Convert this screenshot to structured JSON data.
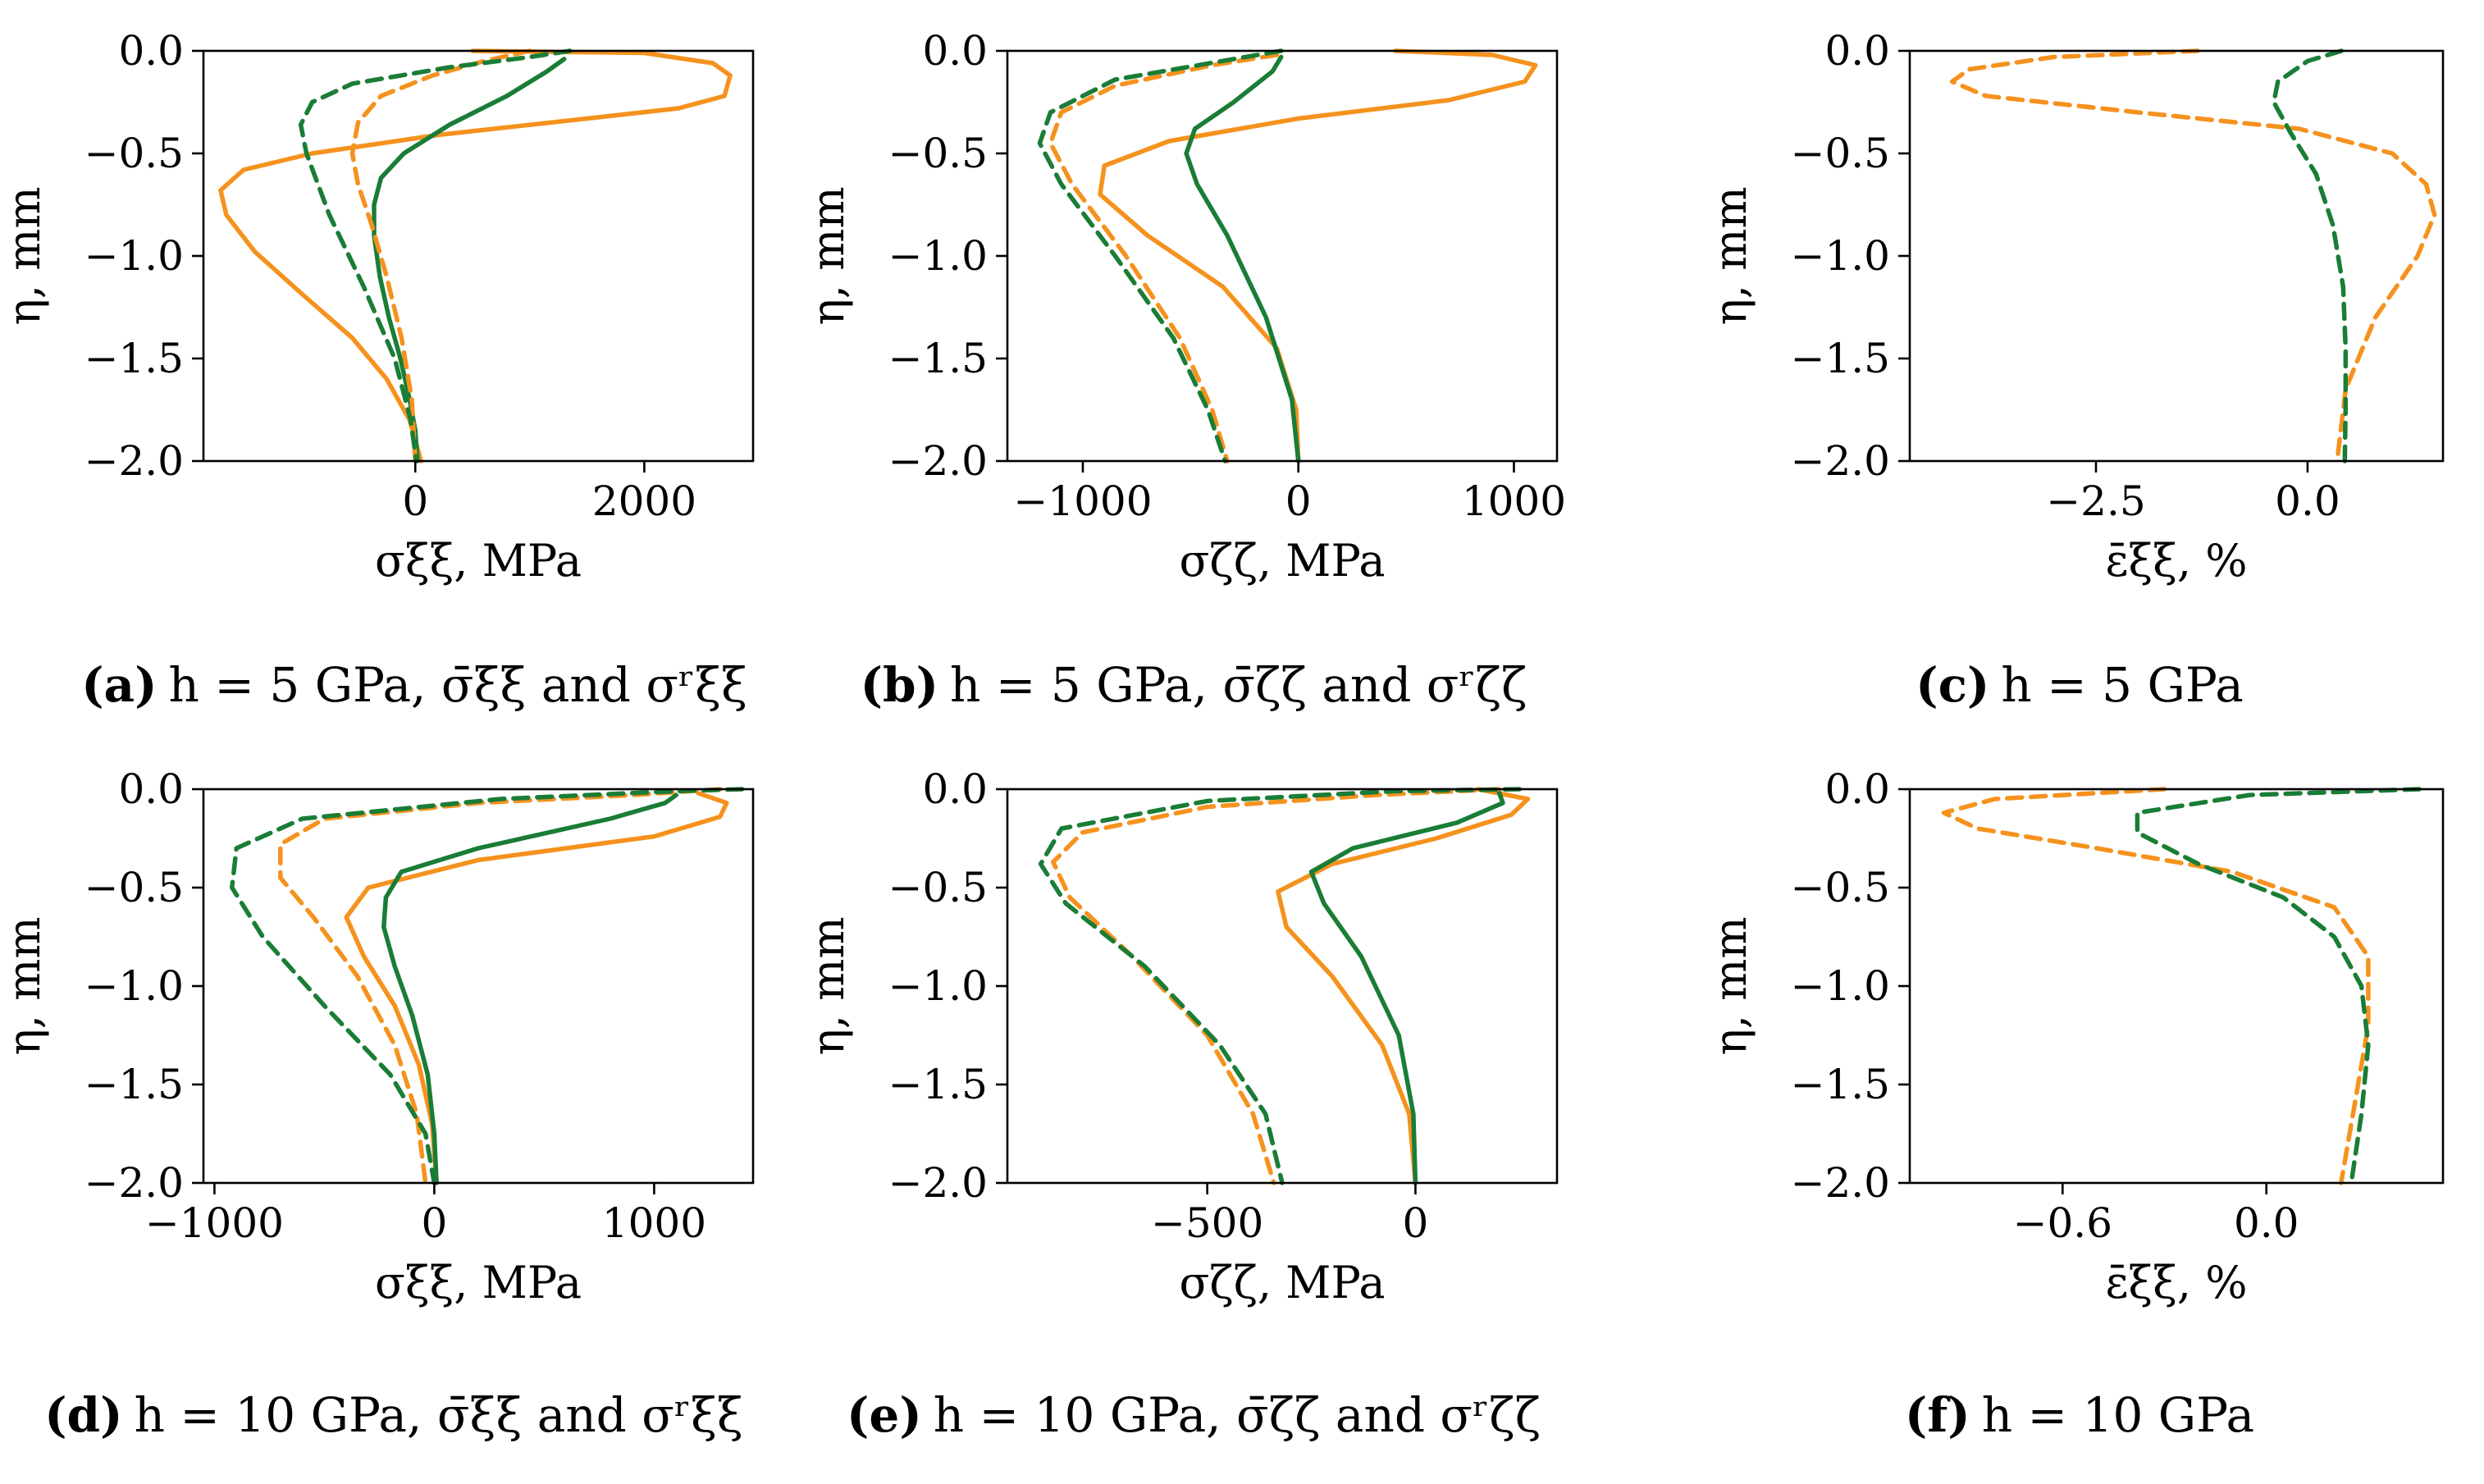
{
  "colors": {
    "orange": "#f5921e",
    "green": "#1a7d36"
  },
  "chart_data": [
    {
      "id": "a",
      "type": "line",
      "caption_letter": "(a)",
      "caption_text": "h = 5 GPa, σ̄ξξ and σʳξξ",
      "xlabel": "σξξ, MPa",
      "ylabel": "η, mm",
      "xlim": [
        -1850,
        2950
      ],
      "ylim": [
        -2.0,
        0.0
      ],
      "xticks": [
        0,
        2000
      ],
      "xtick_labels": [
        "0",
        "2000"
      ],
      "yticks": [
        0.0,
        -0.5,
        -1.0,
        -1.5,
        -2.0
      ],
      "ytick_labels": [
        "0.0",
        "−0.5",
        "−1.0",
        "−1.5",
        "−2.0"
      ],
      "series": [
        {
          "color": "orange",
          "dash": "solid",
          "x": [
            500,
            2000,
            2600,
            2750,
            2700,
            2300,
            1500,
            200,
            -900,
            -1500,
            -1700,
            -1650,
            -1400,
            -1000,
            -550,
            -250,
            -50,
            50
          ],
          "y": [
            0.0,
            -0.01,
            -0.06,
            -0.12,
            -0.22,
            -0.28,
            -0.33,
            -0.41,
            -0.5,
            -0.58,
            -0.68,
            -0.8,
            -0.98,
            -1.18,
            -1.4,
            -1.6,
            -1.8,
            -2.0
          ]
        },
        {
          "color": "green",
          "dash": "solid",
          "x": [
            1300,
            1150,
            800,
            300,
            -100,
            -300,
            -360,
            -360,
            -310,
            -230,
            -130,
            -50,
            0,
            20
          ],
          "y": [
            -0.04,
            -0.1,
            -0.22,
            -0.36,
            -0.5,
            -0.62,
            -0.75,
            -0.9,
            -1.1,
            -1.3,
            -1.5,
            -1.7,
            -1.85,
            -2.0
          ]
        },
        {
          "color": "orange",
          "dash": "dashed",
          "x": [
            1000,
            600,
            150,
            -300,
            -500,
            -550,
            -500,
            -380,
            -250,
            -120,
            -30,
            0
          ],
          "y": [
            0.0,
            -0.05,
            -0.12,
            -0.22,
            -0.35,
            -0.5,
            -0.65,
            -0.85,
            -1.1,
            -1.4,
            -1.7,
            -2.0
          ]
        },
        {
          "color": "green",
          "dash": "dashed",
          "x": [
            1350,
            1000,
            300,
            -550,
            -900,
            -1000,
            -950,
            -750,
            -450,
            -180,
            -40,
            10
          ],
          "y": [
            0.0,
            -0.03,
            -0.08,
            -0.16,
            -0.25,
            -0.36,
            -0.5,
            -0.8,
            -1.15,
            -1.5,
            -1.8,
            -2.0
          ]
        }
      ]
    },
    {
      "id": "b",
      "type": "line",
      "caption_letter": "(b)",
      "caption_text": "h = 5 GPa, σ̄ζζ and σʳζζ",
      "xlabel": "σζζ, MPa",
      "ylabel": "η, mm",
      "xlim": [
        -1350,
        1200
      ],
      "ylim": [
        -2.0,
        0.0
      ],
      "xticks": [
        -1000,
        0,
        1000
      ],
      "xtick_labels": [
        "−1000",
        "0",
        "1000"
      ],
      "yticks": [
        0.0,
        -0.5,
        -1.0,
        -1.5,
        -2.0
      ],
      "ytick_labels": [
        "0.0",
        "−0.5",
        "−1.0",
        "−1.5",
        "−2.0"
      ],
      "series": [
        {
          "color": "orange",
          "dash": "solid",
          "x": [
            450,
            900,
            1100,
            1050,
            700,
            0,
            -600,
            -900,
            -920,
            -700,
            -350,
            -100,
            -10,
            0
          ],
          "y": [
            0.0,
            -0.02,
            -0.07,
            -0.15,
            -0.24,
            -0.33,
            -0.44,
            -0.56,
            -0.7,
            -0.9,
            -1.15,
            -1.45,
            -1.75,
            -2.0
          ]
        },
        {
          "color": "green",
          "dash": "solid",
          "x": [
            -80,
            -120,
            -300,
            -480,
            -520,
            -470,
            -330,
            -150,
            -30,
            0
          ],
          "y": [
            -0.03,
            -0.1,
            -0.25,
            -0.38,
            -0.5,
            -0.65,
            -0.9,
            -1.3,
            -1.7,
            -2.0
          ]
        },
        {
          "color": "orange",
          "dash": "dashed",
          "x": [
            -100,
            -400,
            -850,
            -1100,
            -1150,
            -1050,
            -800,
            -550,
            -400,
            -330
          ],
          "y": [
            -0.02,
            -0.07,
            -0.17,
            -0.3,
            -0.45,
            -0.65,
            -1.0,
            -1.4,
            -1.75,
            -2.0
          ]
        },
        {
          "color": "green",
          "dash": "dashed",
          "x": [
            -80,
            -300,
            -850,
            -1150,
            -1200,
            -1100,
            -850,
            -580,
            -420,
            -340
          ],
          "y": [
            0.0,
            -0.04,
            -0.14,
            -0.3,
            -0.45,
            -0.65,
            -1.0,
            -1.4,
            -1.75,
            -2.0
          ]
        }
      ]
    },
    {
      "id": "c",
      "type": "line",
      "caption_letter": "(c)",
      "caption_text": "h = 5 GPa",
      "xlabel": "ε̄ξξ, %",
      "ylabel": "η, mm",
      "xlim": [
        -4.7,
        1.6
      ],
      "ylim": [
        -2.0,
        0.0
      ],
      "xticks": [
        -2.5,
        0.0
      ],
      "xtick_labels": [
        "−2.5",
        "0.0"
      ],
      "yticks": [
        0.0,
        -0.5,
        -1.0,
        -1.5,
        -2.0
      ],
      "ytick_labels": [
        "0.0",
        "−0.5",
        "−1.0",
        "−1.5",
        "−2.0"
      ],
      "series": [
        {
          "color": "orange",
          "dash": "dashed",
          "x": [
            -1.3,
            -3.0,
            -4.0,
            -4.2,
            -3.8,
            -2.0,
            -0.1,
            1.0,
            1.4,
            1.5,
            1.3,
            0.8,
            0.45,
            0.35
          ],
          "y": [
            0.0,
            -0.03,
            -0.09,
            -0.15,
            -0.22,
            -0.3,
            -0.38,
            -0.5,
            -0.65,
            -0.8,
            -1.0,
            -1.3,
            -1.65,
            -2.0
          ]
        },
        {
          "color": "green",
          "dash": "dashed",
          "x": [
            0.4,
            0.0,
            -0.35,
            -0.4,
            -0.2,
            0.1,
            0.3,
            0.42,
            0.45,
            0.45,
            0.44
          ],
          "y": [
            0.0,
            -0.05,
            -0.15,
            -0.25,
            -0.4,
            -0.6,
            -0.85,
            -1.15,
            -1.45,
            -1.75,
            -2.0
          ]
        }
      ]
    },
    {
      "id": "d",
      "type": "line",
      "caption_letter": "(d)",
      "caption_text": "h = 10 GPa, σ̄ξξ and σʳξξ",
      "xlabel": "σξξ, MPa",
      "ylabel": "η, mm",
      "xlim": [
        -1050,
        1450
      ],
      "ylim": [
        -2.0,
        0.0
      ],
      "xticks": [
        -1000,
        0,
        1000
      ],
      "xtick_labels": [
        "−1000",
        "0",
        "1000"
      ],
      "yticks": [
        0.0,
        -0.5,
        -1.0,
        -1.5,
        -2.0
      ],
      "ytick_labels": [
        "0.0",
        "−0.5",
        "−1.0",
        "−1.5",
        "−2.0"
      ],
      "series": [
        {
          "color": "orange",
          "dash": "solid",
          "x": [
            1200,
            1330,
            1300,
            1000,
            200,
            -300,
            -400,
            -320,
            -180,
            -70,
            -10,
            10
          ],
          "y": [
            -0.02,
            -0.07,
            -0.14,
            -0.24,
            -0.36,
            -0.5,
            -0.65,
            -0.85,
            -1.1,
            -1.4,
            -1.7,
            -2.0
          ]
        },
        {
          "color": "green",
          "dash": "solid",
          "x": [
            1100,
            1050,
            800,
            200,
            -150,
            -220,
            -230,
            -180,
            -100,
            -30,
            0,
            10
          ],
          "y": [
            -0.03,
            -0.07,
            -0.15,
            -0.3,
            -0.42,
            -0.55,
            -0.7,
            -0.9,
            -1.15,
            -1.45,
            -1.75,
            -2.0
          ]
        },
        {
          "color": "orange",
          "dash": "dashed",
          "x": [
            1300,
            900,
            200,
            -500,
            -700,
            -700,
            -550,
            -350,
            -180,
            -80,
            -40
          ],
          "y": [
            0.0,
            -0.03,
            -0.07,
            -0.15,
            -0.28,
            -0.45,
            -0.65,
            -0.95,
            -1.3,
            -1.65,
            -2.0
          ]
        },
        {
          "color": "green",
          "dash": "dashed",
          "x": [
            1400,
            1100,
            300,
            -600,
            -900,
            -920,
            -780,
            -500,
            -200,
            -40,
            0
          ],
          "y": [
            0.0,
            -0.01,
            -0.05,
            -0.15,
            -0.3,
            -0.5,
            -0.75,
            -1.1,
            -1.45,
            -1.75,
            -2.0
          ]
        }
      ]
    },
    {
      "id": "e",
      "type": "line",
      "caption_letter": "(e)",
      "caption_text": "h = 10 GPa, σ̄ζζ and σʳζζ",
      "xlabel": "σζζ, MPa",
      "ylabel": "η, mm",
      "xlim": [
        -980,
        340
      ],
      "ylim": [
        -2.0,
        0.0
      ],
      "xticks": [
        -500,
        0
      ],
      "xtick_labels": [
        "−500",
        "0"
      ],
      "yticks": [
        0.0,
        -0.5,
        -1.0,
        -1.5,
        -2.0
      ],
      "ytick_labels": [
        "0.0",
        "−0.5",
        "−1.0",
        "−1.5",
        "−2.0"
      ],
      "series": [
        {
          "color": "orange",
          "dash": "solid",
          "x": [
            150,
            270,
            230,
            50,
            -200,
            -330,
            -310,
            -200,
            -80,
            -15,
            0
          ],
          "y": [
            0.0,
            -0.05,
            -0.13,
            -0.25,
            -0.38,
            -0.52,
            -0.7,
            -0.95,
            -1.3,
            -1.65,
            -2.0
          ]
        },
        {
          "color": "green",
          "dash": "solid",
          "x": [
            200,
            210,
            100,
            -150,
            -250,
            -220,
            -130,
            -40,
            -5,
            0
          ],
          "y": [
            -0.01,
            -0.07,
            -0.17,
            -0.3,
            -0.42,
            -0.58,
            -0.85,
            -1.25,
            -1.65,
            -2.0
          ]
        },
        {
          "color": "orange",
          "dash": "dashed",
          "x": [
            200,
            -100,
            -500,
            -800,
            -870,
            -830,
            -680,
            -500,
            -390,
            -340
          ],
          "y": [
            0.0,
            -0.03,
            -0.09,
            -0.22,
            -0.37,
            -0.55,
            -0.85,
            -1.25,
            -1.65,
            -2.0
          ]
        },
        {
          "color": "green",
          "dash": "dashed",
          "x": [
            250,
            -50,
            -500,
            -850,
            -900,
            -840,
            -650,
            -470,
            -360,
            -320
          ],
          "y": [
            0.0,
            -0.01,
            -0.06,
            -0.2,
            -0.38,
            -0.58,
            -0.9,
            -1.3,
            -1.65,
            -2.0
          ]
        }
      ]
    },
    {
      "id": "f",
      "type": "line",
      "caption_letter": "(f)",
      "caption_text": "h = 10 GPa",
      "xlabel": "ε̄ξξ, %",
      "ylabel": "η, mm",
      "xlim": [
        -1.05,
        0.52
      ],
      "ylim": [
        -2.0,
        0.0
      ],
      "xticks": [
        -0.6,
        0.0
      ],
      "xtick_labels": [
        "−0.6",
        "0.0"
      ],
      "yticks": [
        0.0,
        -0.5,
        -1.0,
        -1.5,
        -2.0
      ],
      "ytick_labels": [
        "0.0",
        "−0.5",
        "−1.0",
        "−1.5",
        "−2.0"
      ],
      "series": [
        {
          "color": "orange",
          "dash": "dashed",
          "x": [
            -0.3,
            -0.8,
            -0.95,
            -0.85,
            -0.5,
            -0.1,
            0.2,
            0.3,
            0.3,
            0.26,
            0.22
          ],
          "y": [
            0.0,
            -0.05,
            -0.12,
            -0.2,
            -0.3,
            -0.42,
            -0.6,
            -0.85,
            -1.2,
            -1.6,
            -2.0
          ]
        },
        {
          "color": "green",
          "dash": "dashed",
          "x": [
            0.45,
            -0.05,
            -0.38,
            -0.38,
            -0.2,
            0.05,
            0.2,
            0.28,
            0.3,
            0.28,
            0.25
          ],
          "y": [
            0.0,
            -0.03,
            -0.12,
            -0.22,
            -0.38,
            -0.55,
            -0.75,
            -1.0,
            -1.3,
            -1.65,
            -2.0
          ]
        }
      ]
    }
  ]
}
